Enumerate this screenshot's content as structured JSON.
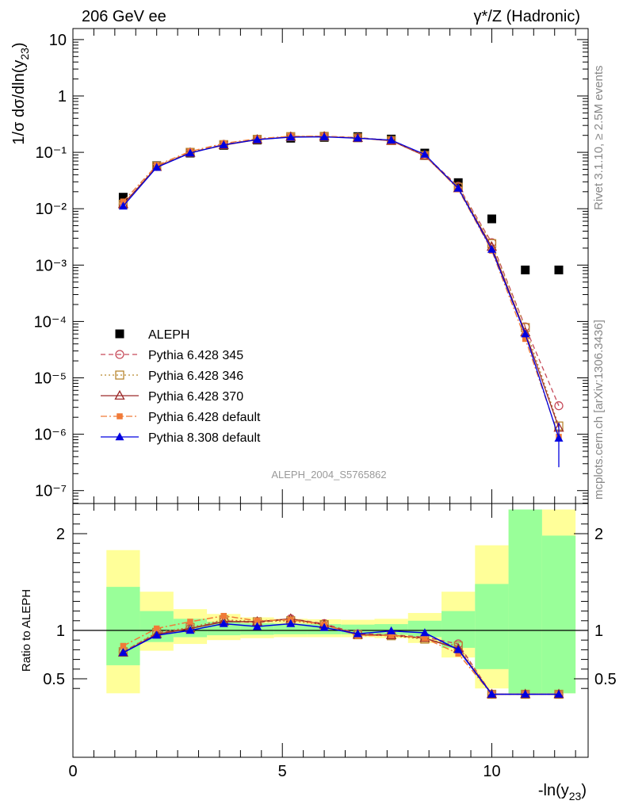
{
  "header": {
    "left": "206 GeV ee",
    "right": "γ*/Z (Hadronic)"
  },
  "side_labels": {
    "rivet": "Rivet 3.1.10, ≥ 2.5M events",
    "mcplots": "mcplots.cern.ch [arXiv:1306.3436]"
  },
  "analysis_id": "ALEPH_2004_S5765862",
  "chart_data": [
    {
      "type": "scatter",
      "panel": "main",
      "ylabel": "1/σ dσ/dln(y23)",
      "xlabel": "-ln(y23)",
      "xlim": [
        0,
        12.3
      ],
      "ylim": [
        1e-07,
        20
      ],
      "yscale": "log",
      "yticks": [
        "10⁻⁷",
        "10⁻⁶",
        "10⁻⁵",
        "10⁻⁴",
        "10⁻³",
        "10⁻²",
        "10⁻¹",
        "1",
        "10"
      ],
      "legend_position": "bottom-left",
      "x": [
        1.2,
        2.0,
        2.8,
        3.6,
        4.4,
        5.2,
        6.0,
        6.8,
        7.6,
        8.4,
        9.2,
        10.0,
        10.8,
        11.6
      ],
      "series": [
        {
          "name": "ALEPH",
          "color": "#000000",
          "marker": "square",
          "line": "none",
          "values": [
            0.016,
            0.058,
            0.097,
            0.133,
            0.165,
            0.178,
            0.184,
            0.19,
            0.172,
            0.097,
            0.029,
            0.0066,
            0.00082,
            0.00082
          ]
        },
        {
          "name": "Pythia 6.428 345",
          "color": "#c64b5a",
          "marker": "open-circle",
          "line": "dashed",
          "values": [
            0.012,
            0.056,
            0.1,
            0.138,
            0.171,
            0.19,
            0.193,
            0.183,
            0.163,
            0.089,
            0.025,
            0.0025,
            8e-05,
            3.2e-06
          ]
        },
        {
          "name": "Pythia 6.428 346",
          "color": "#b8862f",
          "marker": "open-square",
          "line": "dotted",
          "values": [
            0.012,
            0.057,
            0.1,
            0.137,
            0.17,
            0.19,
            0.192,
            0.181,
            0.162,
            0.088,
            0.024,
            0.0024,
            7.8e-05,
            1.4e-06
          ]
        },
        {
          "name": "Pythia 6.428 370",
          "color": "#9c2a2a",
          "marker": "open-triangle",
          "line": "solid",
          "values": [
            0.012,
            0.055,
            0.098,
            0.134,
            0.168,
            0.188,
            0.19,
            0.179,
            0.16,
            0.087,
            0.023,
            0.0021,
            6.4e-05,
            1.3e-06
          ]
        },
        {
          "name": "Pythia 6.428 default",
          "color": "#f07a38",
          "marker": "filled-square-small",
          "line": "dashdot",
          "values": [
            0.0134,
            0.059,
            0.104,
            0.144,
            0.175,
            0.193,
            0.194,
            0.18,
            0.163,
            0.089,
            0.022,
            0.0018,
            4.9e-05,
            9e-07
          ]
        },
        {
          "name": "Pythia 8.308 default",
          "color": "#0000e0",
          "marker": "filled-triangle",
          "line": "solid",
          "values": [
            0.0111,
            0.054,
            0.097,
            0.136,
            0.168,
            0.186,
            0.188,
            0.178,
            0.165,
            0.092,
            0.023,
            0.0019,
            6e-05,
            8.5e-07
          ],
          "errors_last": [
            2.6e-07,
            1.6e-06
          ]
        }
      ]
    },
    {
      "type": "line",
      "panel": "ratio",
      "ylabel": "Ratio to ALEPH",
      "xlabel": "-ln(y23)",
      "xlim": [
        0,
        12.3
      ],
      "ylim": [
        0.35,
        2.25
      ],
      "yticks": [
        "0.5",
        "1",
        "2"
      ],
      "xticks": [
        "0",
        "5",
        "10"
      ],
      "bin_edges": [
        0.8,
        1.6,
        2.4,
        3.2,
        4.0,
        4.8,
        5.6,
        6.4,
        7.2,
        8.0,
        8.8,
        9.6,
        10.4,
        11.2,
        12.0
      ],
      "bands": {
        "inner_color": "#99ff99",
        "outer_color": "#ffff99",
        "inner": [
          [
            0.64,
            1.45
          ],
          [
            0.88,
            1.2
          ],
          [
            0.93,
            1.12
          ],
          [
            0.95,
            1.09
          ],
          [
            0.955,
            1.075
          ],
          [
            0.96,
            1.07
          ],
          [
            0.96,
            1.065
          ],
          [
            0.96,
            1.06
          ],
          [
            0.955,
            1.065
          ],
          [
            0.93,
            1.1
          ],
          [
            0.82,
            1.2
          ],
          [
            0.6,
            1.48
          ],
          [
            0.35,
            2.25
          ],
          [
            0.35,
            1.98
          ]
        ],
        "outer": [
          [
            0.35,
            1.83
          ],
          [
            0.79,
            1.4
          ],
          [
            0.86,
            1.22
          ],
          [
            0.9,
            1.17
          ],
          [
            0.92,
            1.135
          ],
          [
            0.93,
            1.12
          ],
          [
            0.93,
            1.115
          ],
          [
            0.93,
            1.11
          ],
          [
            0.92,
            1.12
          ],
          [
            0.87,
            1.18
          ],
          [
            0.72,
            1.4
          ],
          [
            0.4,
            1.88
          ],
          [
            0.35,
            2.25
          ],
          [
            0.35,
            2.25
          ]
        ]
      },
      "reference_line": 1,
      "series": [
        {
          "name": "Pythia 6.428 345",
          "color": "#c64b5a",
          "marker": "open-circle",
          "line": "dashed",
          "values": [
            0.78,
            0.97,
            1.02,
            1.1,
            1.08,
            1.12,
            1.07,
            0.965,
            0.955,
            0.93,
            0.86,
            0.34,
            0.34,
            0.34
          ]
        },
        {
          "name": "Pythia 6.428 346",
          "color": "#b8862f",
          "marker": "open-square",
          "line": "dotted",
          "values": [
            0.78,
            0.98,
            1.03,
            1.11,
            1.09,
            1.1,
            1.06,
            0.955,
            0.945,
            0.91,
            0.84,
            0.34,
            0.34,
            0.34
          ]
        },
        {
          "name": "Pythia 6.428 370",
          "color": "#9c2a2a",
          "marker": "open-triangle",
          "line": "solid",
          "values": [
            0.77,
            0.96,
            1.02,
            1.09,
            1.09,
            1.12,
            1.06,
            0.955,
            0.95,
            0.92,
            0.81,
            0.34,
            0.34,
            0.34
          ]
        },
        {
          "name": "Pythia 6.428 default",
          "color": "#f07a38",
          "marker": "filled-square-small",
          "line": "dashdot",
          "values": [
            0.84,
            1.02,
            1.09,
            1.15,
            1.1,
            1.11,
            1.06,
            0.945,
            0.95,
            0.92,
            0.76,
            0.34,
            0.34,
            0.34
          ]
        },
        {
          "name": "Pythia 8.308 default",
          "color": "#0000e0",
          "marker": "filled-triangle",
          "line": "solid",
          "values": [
            0.77,
            0.95,
            1.0,
            1.07,
            1.04,
            1.07,
            1.03,
            0.965,
            0.995,
            0.975,
            0.8,
            0.34,
            0.34,
            0.34
          ]
        }
      ]
    }
  ]
}
